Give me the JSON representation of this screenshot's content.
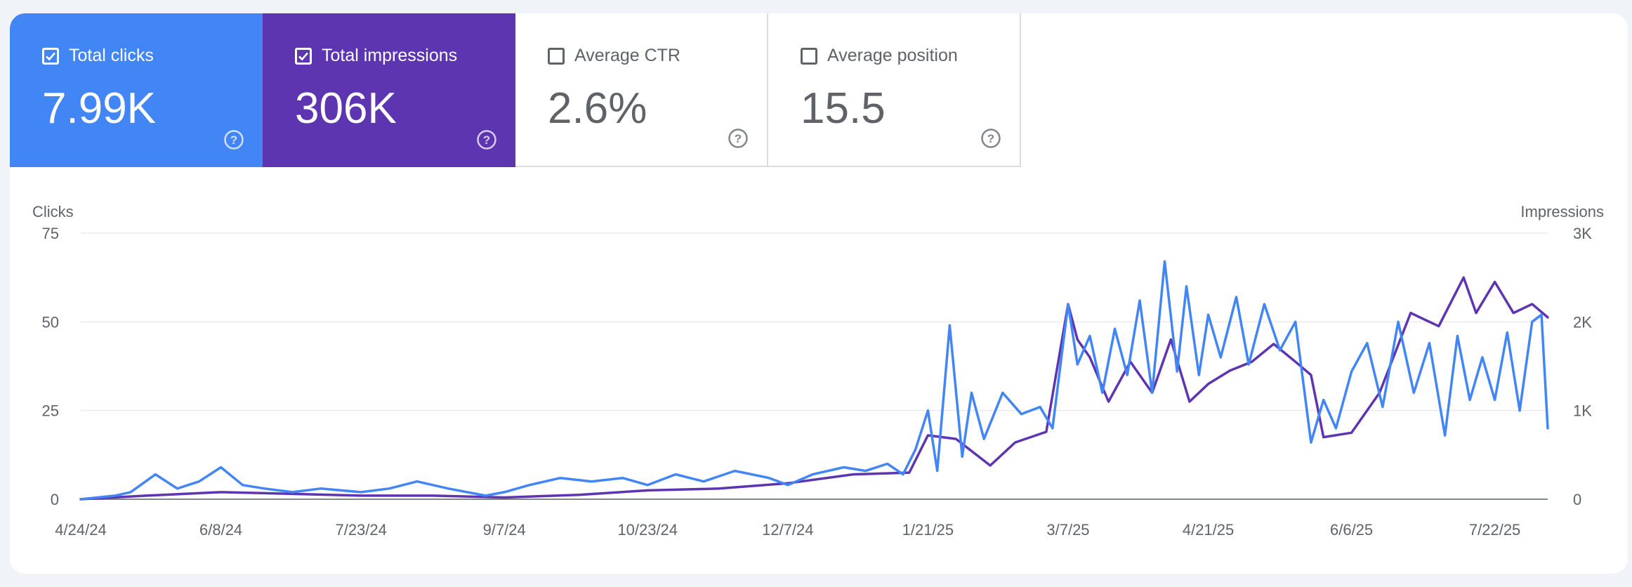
{
  "metrics": [
    {
      "label": "Total clicks",
      "value": "7.99K",
      "checked": true,
      "color": "#4285f4"
    },
    {
      "label": "Total impressions",
      "value": "306K",
      "checked": true,
      "color": "#5e35b1"
    },
    {
      "label": "Average CTR",
      "value": "2.6%",
      "checked": false,
      "color": "#ffffff"
    },
    {
      "label": "Average position",
      "value": "15.5",
      "checked": false,
      "color": "#ffffff"
    }
  ],
  "chart_data": {
    "type": "line",
    "left_axis_label": "Clicks",
    "right_axis_label": "Impressions",
    "left_ticks": [
      "0",
      "25",
      "50",
      "75"
    ],
    "right_ticks": [
      "0",
      "1K",
      "2K",
      "3K"
    ],
    "left_range": [
      0,
      75
    ],
    "right_range": [
      0,
      3000
    ],
    "x_start": "4/24/24",
    "x_end": "8/8/25",
    "x_tick_labels": [
      "4/24/24",
      "6/8/24",
      "7/23/24",
      "9/7/24",
      "10/23/24",
      "12/7/24",
      "1/21/25",
      "3/7/25",
      "4/21/25",
      "6/6/25",
      "7/22/25"
    ],
    "grid": true,
    "series": [
      {
        "name": "Total impressions",
        "axis": "right",
        "color": "#5e35b1",
        "x": [
          "4/24/24",
          "5/15/24",
          "6/8/24",
          "7/1/24",
          "7/23/24",
          "8/15/24",
          "9/7/24",
          "10/1/24",
          "10/23/24",
          "11/15/24",
          "12/7/24",
          "12/28/24",
          "1/15/25",
          "1/21/25",
          "1/30/25",
          "2/10/25",
          "2/18/25",
          "2/28/25",
          "3/7/25",
          "3/10/25",
          "3/14/25",
          "3/20/25",
          "3/27/25",
          "4/3/25",
          "4/9/25",
          "4/15/25",
          "4/21/25",
          "4/28/25",
          "5/5/25",
          "5/12/25",
          "5/19/25",
          "5/24/25",
          "5/28/25",
          "6/6/25",
          "6/15/25",
          "6/25/25",
          "7/4/25",
          "7/12/25",
          "7/16/25",
          "7/22/25",
          "7/28/25",
          "8/3/25",
          "8/8/25"
        ],
        "values": [
          0,
          40,
          80,
          60,
          40,
          40,
          20,
          50,
          100,
          120,
          180,
          280,
          300,
          720,
          680,
          380,
          640,
          760,
          2200,
          1800,
          1600,
          1100,
          1550,
          1200,
          1800,
          1100,
          1300,
          1450,
          1550,
          1750,
          1550,
          1400,
          700,
          750,
          1200,
          2100,
          1950,
          2500,
          2100,
          2450,
          2100,
          2200,
          2050
        ]
      },
      {
        "name": "Total clicks",
        "axis": "left",
        "color": "#4285f4",
        "x": [
          "4/24/24",
          "5/5/24",
          "5/10/24",
          "5/18/24",
          "5/25/24",
          "6/1/24",
          "6/8/24",
          "6/15/24",
          "6/22/24",
          "7/1/24",
          "7/10/24",
          "7/23/24",
          "8/1/24",
          "8/10/24",
          "8/20/24",
          "9/1/24",
          "9/7/24",
          "9/15/24",
          "9/25/24",
          "10/5/24",
          "10/15/24",
          "10/23/24",
          "11/1/24",
          "11/10/24",
          "11/20/24",
          "12/1/24",
          "12/7/24",
          "12/15/24",
          "12/25/24",
          "1/1/25",
          "1/8/25",
          "1/13/25",
          "1/17/25",
          "1/21/25",
          "1/24/25",
          "1/28/25",
          "2/1/25",
          "2/4/25",
          "2/8/25",
          "2/14/25",
          "2/20/25",
          "2/26/25",
          "3/2/25",
          "3/7/25",
          "3/10/25",
          "3/14/25",
          "3/18/25",
          "3/22/25",
          "3/26/25",
          "3/30/25",
          "4/3/25",
          "4/7/25",
          "4/11/25",
          "4/14/25",
          "4/18/25",
          "4/21/25",
          "4/25/25",
          "4/30/25",
          "5/4/25",
          "5/9/25",
          "5/14/25",
          "5/19/25",
          "5/24/25",
          "5/28/25",
          "6/1/25",
          "6/6/25",
          "6/11/25",
          "6/16/25",
          "6/21/25",
          "6/26/25",
          "7/1/25",
          "7/6/25",
          "7/10/25",
          "7/14/25",
          "7/18/25",
          "7/22/25",
          "7/26/25",
          "7/30/25",
          "8/3/25",
          "8/6/25",
          "8/8/25"
        ],
        "values": [
          0,
          1,
          2,
          7,
          3,
          5,
          9,
          4,
          3,
          2,
          3,
          2,
          3,
          5,
          3,
          1,
          2,
          4,
          6,
          5,
          6,
          4,
          7,
          5,
          8,
          6,
          4,
          7,
          9,
          8,
          10,
          7,
          14,
          25,
          8,
          49,
          12,
          30,
          17,
          30,
          24,
          26,
          20,
          55,
          38,
          46,
          30,
          48,
          35,
          56,
          30,
          67,
          36,
          60,
          35,
          52,
          40,
          57,
          38,
          55,
          42,
          50,
          16,
          28,
          20,
          36,
          44,
          26,
          50,
          30,
          44,
          18,
          46,
          28,
          40,
          28,
          47,
          25,
          50,
          52,
          20
        ]
      }
    ]
  }
}
